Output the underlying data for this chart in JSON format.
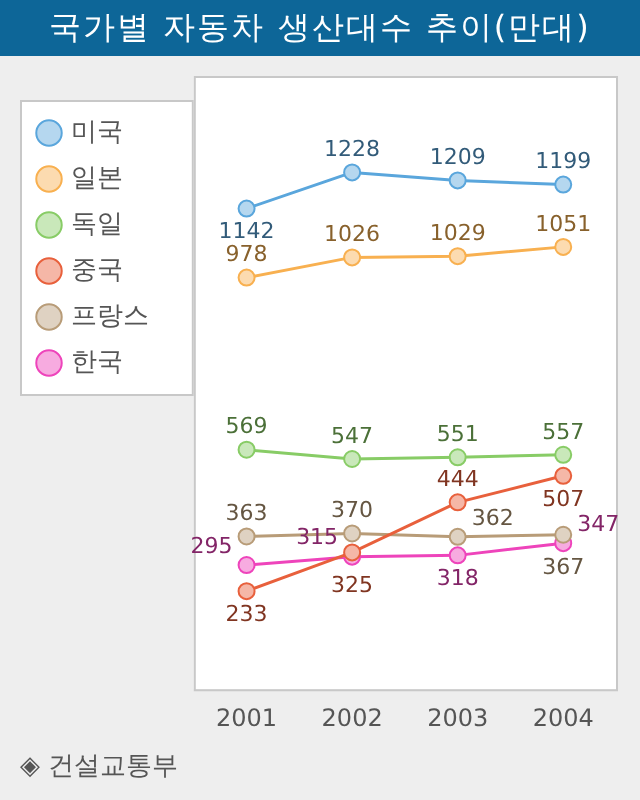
{
  "chart_data": {
    "type": "line",
    "title": "국가별 자동차 생산대수 추이(만대)",
    "categories": [
      "2001",
      "2002",
      "2003",
      "2004"
    ],
    "series": [
      {
        "name": "미국",
        "color": "#5aa6dc",
        "values": [
          1142,
          1228,
          1209,
          1199
        ]
      },
      {
        "name": "일본",
        "color": "#f8b050",
        "values": [
          978,
          1026,
          1029,
          1051
        ]
      },
      {
        "name": "독일",
        "color": "#88cc66",
        "values": [
          569,
          547,
          551,
          557
        ]
      },
      {
        "name": "중국",
        "color": "#e8603c",
        "values": [
          233,
          325,
          444,
          507
        ]
      },
      {
        "name": "프랑스",
        "color": "#b89c78",
        "values": [
          363,
          370,
          362,
          367
        ]
      },
      {
        "name": "한국",
        "color": "#ee44bb",
        "values": [
          295,
          315,
          318,
          347
        ]
      }
    ],
    "tick_labels": "x",
    "grid": false,
    "legend": "left",
    "marker": "circle",
    "line_style": "solid",
    "data_labels": true,
    "annotations": [
      "◈ 건설교통부"
    ]
  }
}
